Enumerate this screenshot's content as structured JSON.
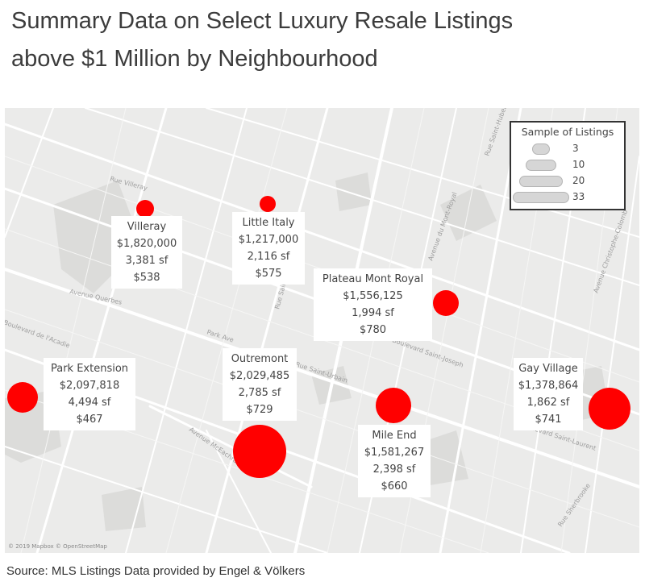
{
  "title_line1": "Summary Data on Select Luxury Resale Listings",
  "title_line2": "above $1 Million by Neighbourhood",
  "colors": {
    "marker": "#ff0000",
    "map_bg": "#ebebea",
    "road": "#ffffff",
    "park": "#dcdcda"
  },
  "legend": {
    "title": "Sample of Listings",
    "items": [
      "3",
      "10",
      "20",
      "33"
    ]
  },
  "neighbourhoods": [
    {
      "name": "Villeray",
      "price": "$1,820,000",
      "area": "3,381 sf",
      "price_per_sf": "$538"
    },
    {
      "name": "Little Italy",
      "price": "$1,217,000",
      "area": "2,116 sf",
      "price_per_sf": "$575"
    },
    {
      "name": "Plateau Mont Royal",
      "price": "$1,556,125",
      "area": "1,994 sf",
      "price_per_sf": "$780"
    },
    {
      "name": "Park Extension",
      "price": "$2,097,818",
      "area": "4,494 sf",
      "price_per_sf": "$467"
    },
    {
      "name": "Outremont",
      "price": "$2,029,485",
      "area": "2,785 sf",
      "price_per_sf": "$729"
    },
    {
      "name": "Gay Village",
      "price": "$1,378,864",
      "area": "1,862 sf",
      "price_per_sf": "$741"
    },
    {
      "name": "Mile End",
      "price": "$1,581,267",
      "area": "2,398 sf",
      "price_per_sf": "$660"
    }
  ],
  "streets": [
    "Avenue Querbes",
    "Boulevard de l'Acadie",
    "Park Ave",
    "Avenue McEachran",
    "Rue Saint-Urbain",
    "Boulevard Saint-Laurent",
    "Rue Saint-Hubert",
    "Avenue Christophe-Colomb",
    "Rue Villeray",
    "Rue Saint-Denis",
    "Boulevard Saint-Joseph",
    "Avenue du Mont-Royal",
    "Rue Sherbrooke"
  ],
  "attribution": "© 2019 Mapbox © OpenStreetMap",
  "source": "Source: MLS Listings Data provided by Engel & Völkers"
}
